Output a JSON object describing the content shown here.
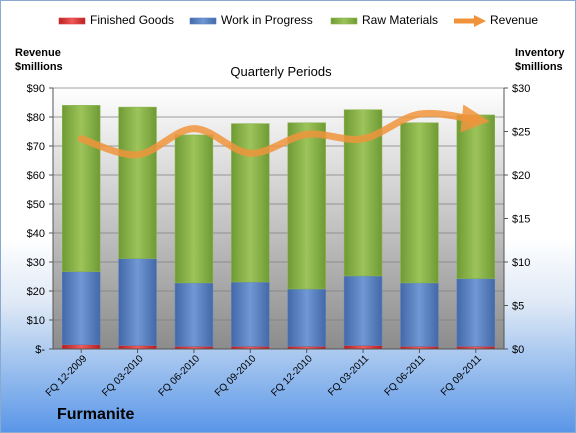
{
  "company": "Furmanite",
  "chart_data": {
    "type": "bar",
    "stacked": true,
    "title": "Quarterly Periods",
    "ylabel_left": [
      "Revenue",
      "$millions"
    ],
    "ylabel_right": [
      "Inventory",
      "$millions"
    ],
    "categories": [
      "FQ 12-2009",
      "FQ 03-2010",
      "FQ 06-2010",
      "FQ 09-2010",
      "FQ 12-2010",
      "FQ 03-2011",
      "FQ 06-2011",
      "FQ 09-2011"
    ],
    "left_axis": {
      "min": 0,
      "max": 90,
      "step": 10,
      "tick_labels": [
        "$-",
        "$10",
        "$20",
        "$30",
        "$40",
        "$50",
        "$60",
        "$70",
        "$80",
        "$90"
      ]
    },
    "right_axis": {
      "min": 0,
      "max": 30,
      "step": 5,
      "tick_labels": [
        "$0",
        "$5",
        "$10",
        "$15",
        "$20",
        "$25",
        "$30"
      ]
    },
    "legend_position": "top",
    "series": [
      {
        "name": "Finished Goods",
        "type": "bar",
        "axis": "right",
        "color": "#e03c3c",
        "values": [
          0.5,
          0.4,
          0.3,
          0.3,
          0.3,
          0.4,
          0.3,
          0.3
        ]
      },
      {
        "name": "Work in Progress",
        "type": "bar",
        "axis": "right",
        "color": "#5580c0",
        "values": [
          8.4,
          10.0,
          7.3,
          7.4,
          6.6,
          8.0,
          7.3,
          7.8
        ]
      },
      {
        "name": "Raw Materials",
        "type": "bar",
        "axis": "right",
        "color": "#8bb34a",
        "values": [
          19.1,
          17.4,
          17.0,
          18.2,
          19.1,
          19.1,
          18.4,
          18.8
        ]
      },
      {
        "name": "Revenue",
        "type": "line",
        "axis": "left",
        "color": "#f0943c",
        "values": [
          72.5,
          67,
          76,
          67.5,
          74,
          72.5,
          81,
          79
        ]
      }
    ]
  }
}
